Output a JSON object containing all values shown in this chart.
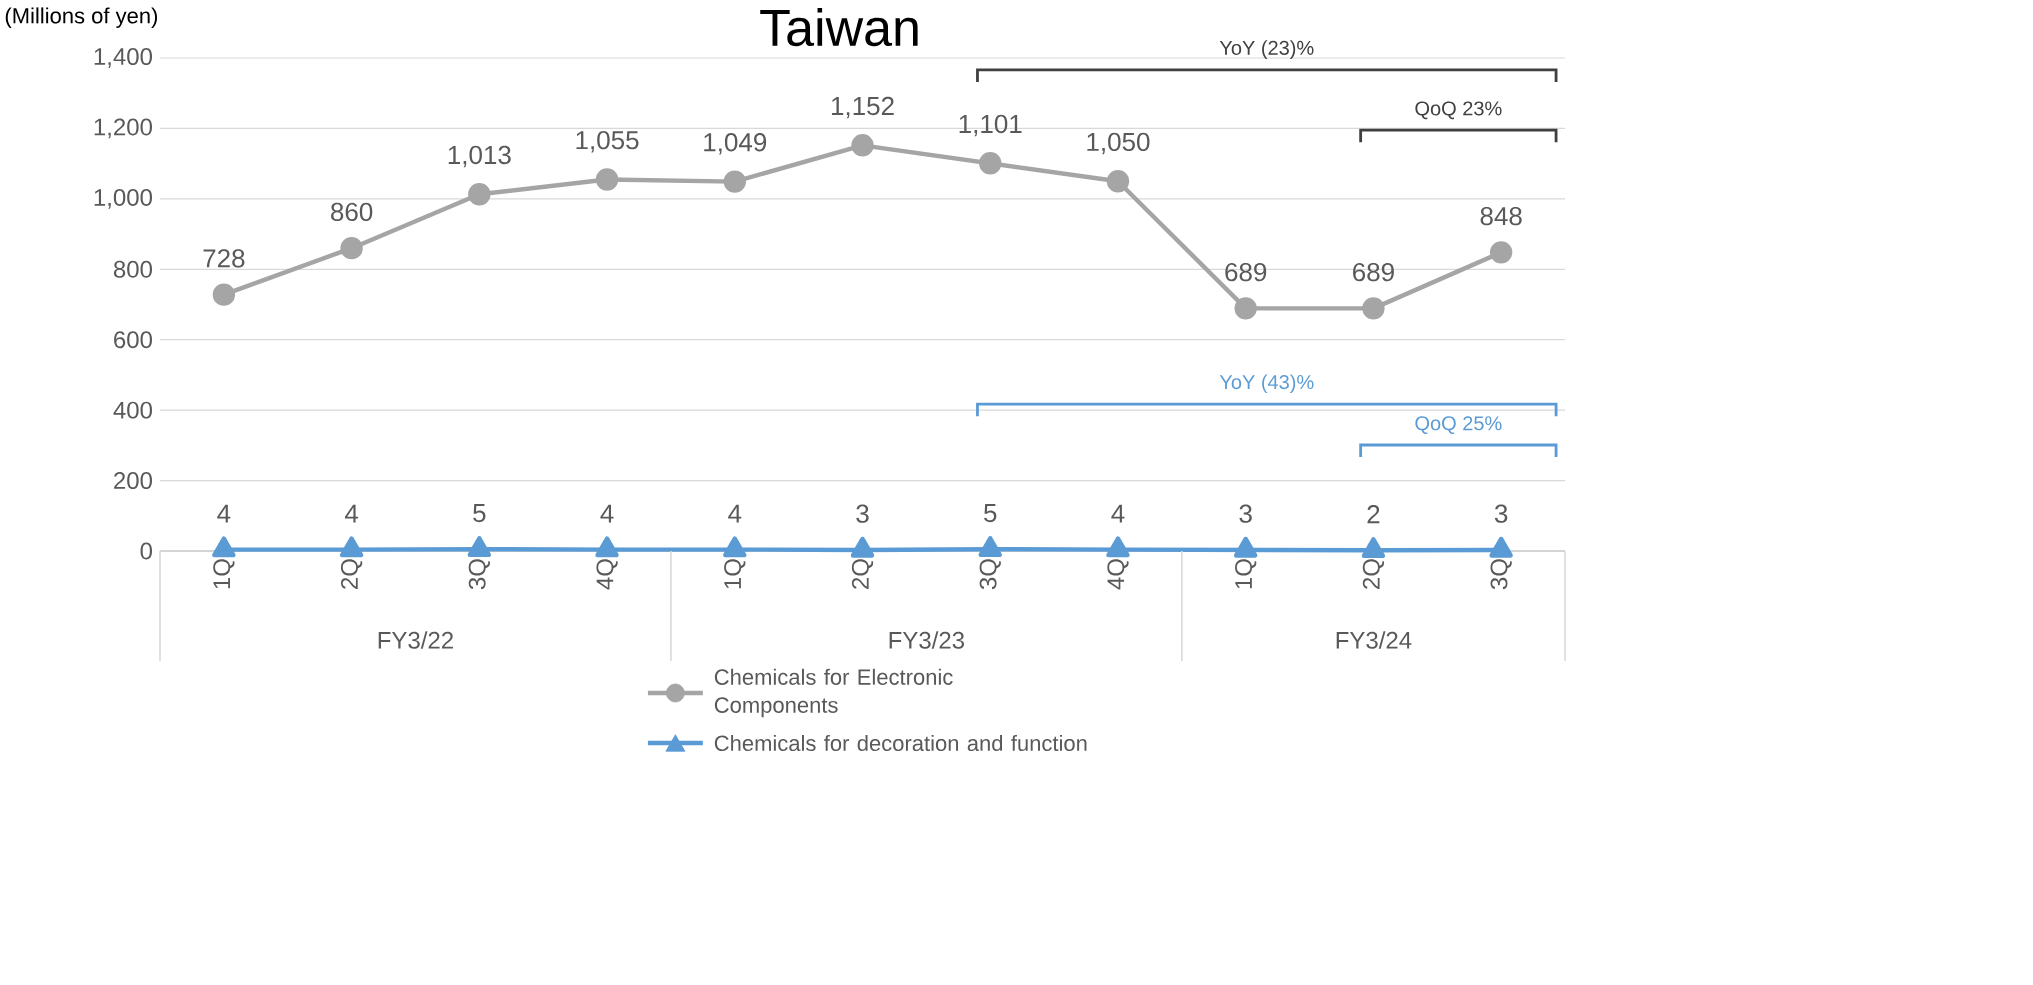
{
  "chart_data": {
    "type": "line",
    "title": "Taiwan",
    "ylabel": "(Millions of yen)",
    "categories": [
      "1Q",
      "2Q",
      "3Q",
      "4Q",
      "1Q",
      "2Q",
      "3Q",
      "4Q",
      "1Q",
      "2Q",
      "3Q"
    ],
    "series": [
      {
        "name": "Chemicals for Electronic Components",
        "color": "#a5a5a5",
        "marker": "circle",
        "values": [
          728,
          860,
          1013,
          1055,
          1049,
          1152,
          1101,
          1050,
          689,
          689,
          848
        ],
        "value_labels": [
          "728",
          "860",
          "1,013",
          "1,055",
          "1,049",
          "1,152",
          "1,101",
          "1,050",
          "689",
          "689",
          "848"
        ]
      },
      {
        "name": "Chemicals for decoration and function",
        "color": "#5b9bd5",
        "marker": "triangle",
        "values": [
          4,
          4,
          5,
          4,
          4,
          3,
          5,
          4,
          3,
          2,
          3
        ],
        "value_labels": [
          "4",
          "4",
          "5",
          "4",
          "4",
          "3",
          "5",
          "4",
          "3",
          "2",
          "3"
        ]
      }
    ],
    "ylim": [
      0,
      1400
    ],
    "yticks": [
      0,
      200,
      400,
      600,
      800,
      {
        "value": 1000,
        "label": "1,000"
      },
      {
        "value": 1200,
        "label": "1,200"
      },
      {
        "value": 1400,
        "label": "1,400"
      }
    ],
    "grid": "y",
    "legend": "bottom",
    "line_style": "solid",
    "annotations": [
      "YoY (23)%",
      "QoQ 23%",
      "YoY (43)%",
      "QoQ 25%",
      "FY3/22",
      "FY3/23",
      "FY3/24"
    ]
  }
}
